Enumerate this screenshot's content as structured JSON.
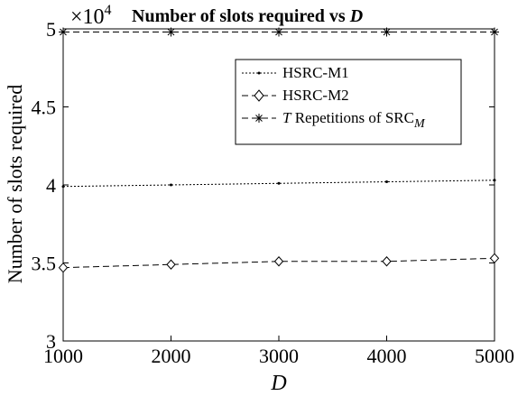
{
  "chart_data": {
    "type": "line",
    "title": "Number of slots required vs",
    "title_var": "D",
    "xlabel": "D",
    "ylabel": "Number of slots required",
    "y_multiplier": "×10",
    "y_multiplier_exp": "4",
    "x": [
      1000,
      2000,
      3000,
      4000,
      5000
    ],
    "xlim": [
      1000,
      5000
    ],
    "ylim": [
      3,
      5
    ],
    "xticks": [
      "1000",
      "2000",
      "3000",
      "4000",
      "5000"
    ],
    "yticks": [
      "3",
      "3.5",
      "4",
      "4.5",
      "5"
    ],
    "ytick_values": [
      3,
      3.5,
      4,
      4.5,
      5
    ],
    "grid": false,
    "legend_position": "top-right",
    "series": [
      {
        "name": "HSRC-M1",
        "values": [
          3.99,
          4.0,
          4.01,
          4.02,
          4.03
        ],
        "linestyle": "dotted",
        "marker": "point",
        "color": "#000000"
      },
      {
        "name": "HSRC-M2",
        "values": [
          3.47,
          3.49,
          3.51,
          3.51,
          3.53
        ],
        "linestyle": "dashed",
        "marker": "diamond",
        "color": "#000000"
      },
      {
        "name": "Repetitions of  SRC",
        "name_prefix": "T",
        "name_subscript": "M",
        "values": [
          4.98,
          4.98,
          4.98,
          4.98,
          4.98
        ],
        "linestyle": "dashed",
        "marker": "asterisk",
        "color": "#000000"
      }
    ]
  }
}
